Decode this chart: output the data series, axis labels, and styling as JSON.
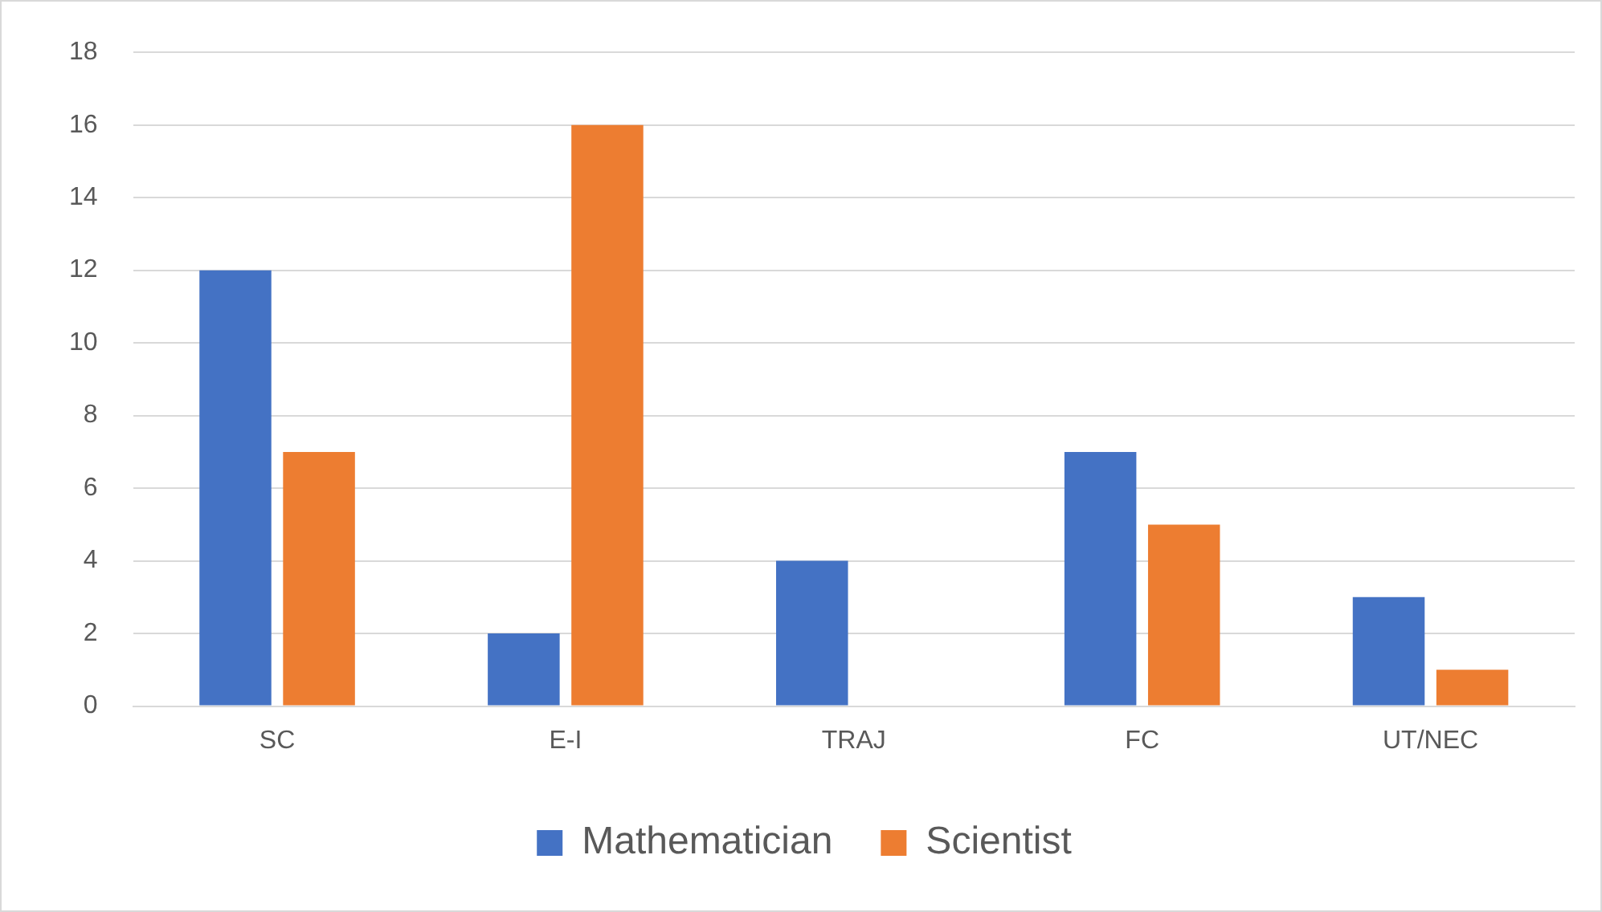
{
  "chart_data": {
    "type": "bar",
    "categories": [
      "SC",
      "E-I",
      "TRAJ",
      "FC",
      "UT/NEC"
    ],
    "series": [
      {
        "name": "Mathematician",
        "color": "#4472c4",
        "values": [
          12,
          2,
          4,
          7,
          3
        ]
      },
      {
        "name": "Scientist",
        "color": "#ed7d31",
        "values": [
          7,
          16,
          0,
          5,
          1
        ]
      }
    ],
    "ylim": [
      0,
      18
    ],
    "yticks": [
      0,
      2,
      4,
      6,
      8,
      10,
      12,
      14,
      16,
      18
    ],
    "grid": "y",
    "legend": "bottom"
  }
}
